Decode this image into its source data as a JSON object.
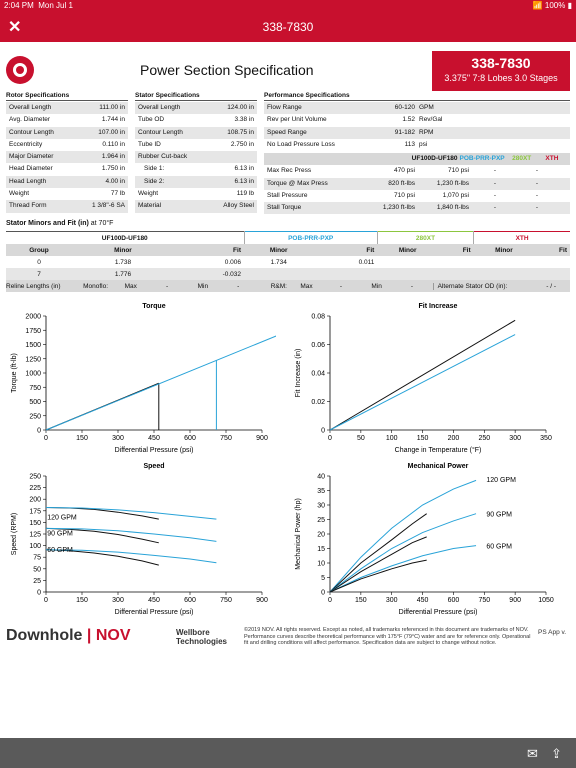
{
  "status": {
    "time": "2:04 PM",
    "date": "Mon Jul 1",
    "battery": "100%"
  },
  "nav": {
    "title": "338-7830"
  },
  "header": {
    "title": "Power Section Specification",
    "part_number": "338-7830",
    "subtitle": "3.375\" 7:8 Lobes 3.0 Stages"
  },
  "rotor": {
    "title": "Rotor Specifications",
    "rows": [
      {
        "label": "Overall Length",
        "value": "111.00 in"
      },
      {
        "label": "Avg. Diameter",
        "value": "1.744 in"
      },
      {
        "label": "Contour Length",
        "value": "107.00 in"
      },
      {
        "label": "Eccentricity",
        "value": "0.110 in"
      },
      {
        "label": "Major Diameter",
        "value": "1.964 in"
      },
      {
        "label": "Head Diameter",
        "value": "1.750 in"
      },
      {
        "label": "Head Length",
        "value": "4.00 in"
      },
      {
        "label": "Weight",
        "value": "77 lb"
      },
      {
        "label": "Thread Form",
        "value": "1 3/8\"-6 SA"
      }
    ]
  },
  "stator": {
    "title": "Stator Specifications",
    "rows": [
      {
        "label": "Overall Length",
        "value": "124.00 in"
      },
      {
        "label": "Tube OD",
        "value": "3.38 in"
      },
      {
        "label": "Contour Length",
        "value": "108.75 in"
      },
      {
        "label": "Tube ID",
        "value": "2.750 in"
      },
      {
        "label": "Rubber Cut-back",
        "value": ""
      },
      {
        "label": "Side 1:",
        "value": "6.13 in"
      },
      {
        "label": "Side 2:",
        "value": "6.13 in"
      },
      {
        "label": "Weight",
        "value": "119 lb"
      },
      {
        "label": "Material",
        "value": "Alloy Steel"
      }
    ]
  },
  "performance": {
    "title": "Performance Specifications",
    "rows": [
      {
        "label": "Flow Range",
        "value": "60-120",
        "unit": "GPM"
      },
      {
        "label": "Rev per Unit Volume",
        "value": "1.52",
        "unit": "Rev/Gal"
      },
      {
        "label": "Speed Range",
        "value": "91-182",
        "unit": "RPM"
      },
      {
        "label": "No Load Pressure Loss",
        "value": "113",
        "unit": "psi"
      }
    ],
    "col_headers": [
      "UF100D-UF180",
      "POB-PRR-PXP",
      "280XT",
      "XTH"
    ],
    "col_colors": [
      "#111111",
      "#29a3d8",
      "#8cc63f",
      "#c8102e"
    ],
    "rows2": [
      {
        "label": "Max Rec Press",
        "v1": "470 psi",
        "v2": "710 psi",
        "v3": "-",
        "v4": "-"
      },
      {
        "label": "Torque @ Max Press",
        "v1": "820 ft-lbs",
        "v2": "1,230 ft-lbs",
        "v3": "-",
        "v4": "-"
      },
      {
        "label": "Stall Pressure",
        "v1": "710 psi",
        "v2": "1,070 psi",
        "v3": "-",
        "v4": "-"
      },
      {
        "label": "Stall Torque",
        "v1": "1,230 ft-lbs",
        "v2": "1,840 ft-lbs",
        "v3": "-",
        "v4": "-"
      }
    ]
  },
  "fit": {
    "title_bold": "Stator Minors and Fit (in)",
    "title_rest": " at 70°F",
    "groups": [
      "UF100D-UF180",
      "POB-PRR-PXP",
      "280XT",
      "XTH"
    ],
    "sub": {
      "group": "Group",
      "minor": "Minor",
      "fit": "Fit"
    },
    "rows": [
      {
        "group": "0",
        "m1": "1.738",
        "f1": "0.006",
        "m2": "1.734",
        "f2": "0.011",
        "m3": "",
        "f3": "",
        "m4": "",
        "f4": ""
      },
      {
        "group": "7",
        "m1": "1.776",
        "f1": "-0.032",
        "m2": "",
        "f2": "",
        "m3": "",
        "f3": "",
        "m4": "",
        "f4": ""
      }
    ]
  },
  "reline": {
    "label": "Reline Lengths (in)",
    "monoflo": "Monoflo:",
    "max": "Max",
    "dash": "-",
    "min": "Min",
    "rm": "R&M:",
    "alt": "Alternate Stator OD (in):",
    "alt_val": "- / -"
  },
  "chart_data": [
    {
      "type": "line",
      "title": "Torque",
      "xlabel": "Differential Pressure (psi)",
      "ylabel": "Torque (ft-lb)",
      "xlim": [
        0,
        900
      ],
      "ylim": [
        0,
        2000
      ],
      "xticks": [
        0,
        150,
        300,
        450,
        600,
        750,
        900
      ],
      "yticks": [
        0,
        250,
        500,
        750,
        1000,
        1250,
        1500,
        1750,
        2000
      ],
      "series": [
        {
          "color": "#111111",
          "points": [
            [
              0,
              0
            ],
            [
              470,
              820
            ]
          ],
          "marker_x": 470
        },
        {
          "color": "#29a3d8",
          "points": [
            [
              0,
              0
            ],
            [
              1070,
              1840
            ]
          ],
          "marker_x": 710
        }
      ]
    },
    {
      "type": "line",
      "title": "Fit Increase",
      "xlabel": "Change in Temperature (°F)",
      "ylabel": "Fit Increase (in)",
      "xlim": [
        0,
        350
      ],
      "ylim": [
        0,
        0.08
      ],
      "xticks": [
        0,
        50,
        100,
        150,
        200,
        250,
        300,
        350
      ],
      "yticks": [
        0,
        0.02,
        0.04,
        0.06,
        0.08
      ],
      "series": [
        {
          "color": "#111111",
          "points": [
            [
              0,
              0
            ],
            [
              300,
              0.077
            ]
          ]
        },
        {
          "color": "#29a3d8",
          "points": [
            [
              0,
              0
            ],
            [
              300,
              0.067
            ]
          ]
        }
      ]
    },
    {
      "type": "line",
      "title": "Speed",
      "xlabel": "Differential Pressure (psi)",
      "ylabel": "Speed (RPM)",
      "xlim": [
        0,
        900
      ],
      "ylim": [
        0,
        250
      ],
      "xticks": [
        0,
        150,
        300,
        450,
        600,
        750,
        900
      ],
      "yticks": [
        0,
        25,
        50,
        75,
        100,
        125,
        150,
        175,
        200,
        225,
        250
      ],
      "annotations": [
        {
          "text": "120 GPM",
          "x": 5,
          "y": 156
        },
        {
          "text": "90 GPM",
          "x": 5,
          "y": 122
        },
        {
          "text": "60 GPM",
          "x": 5,
          "y": 86
        }
      ],
      "series": [
        {
          "color": "#111111",
          "points": [
            [
              0,
              182
            ],
            [
              100,
              181
            ],
            [
              200,
              178
            ],
            [
              300,
              172
            ],
            [
              400,
              164
            ],
            [
              470,
              157
            ]
          ]
        },
        {
          "color": "#29a3d8",
          "points": [
            [
              0,
              182
            ],
            [
              150,
              181
            ],
            [
              300,
              177
            ],
            [
              450,
              171
            ],
            [
              600,
              163
            ],
            [
              710,
              157
            ]
          ]
        },
        {
          "color": "#111111",
          "points": [
            [
              0,
              137
            ],
            [
              100,
              135
            ],
            [
              200,
              131
            ],
            [
              300,
              124
            ],
            [
              400,
              114
            ],
            [
              470,
              106
            ]
          ]
        },
        {
          "color": "#29a3d8",
          "points": [
            [
              0,
              137
            ],
            [
              150,
              136
            ],
            [
              300,
              132
            ],
            [
              450,
              125
            ],
            [
              600,
              117
            ],
            [
              710,
              109
            ]
          ]
        },
        {
          "color": "#111111",
          "points": [
            [
              0,
              91
            ],
            [
              100,
              89
            ],
            [
              200,
              84
            ],
            [
              300,
              77
            ],
            [
              400,
              67
            ],
            [
              470,
              58
            ]
          ]
        },
        {
          "color": "#29a3d8",
          "points": [
            [
              0,
              91
            ],
            [
              150,
              90
            ],
            [
              300,
              86
            ],
            [
              450,
              79
            ],
            [
              600,
              71
            ],
            [
              710,
              63
            ]
          ]
        }
      ]
    },
    {
      "type": "line",
      "title": "Mechanical Power",
      "xlabel": "Differential Pressure (psi)",
      "ylabel": "Mechanical Power (hp)",
      "xlim": [
        0,
        1050
      ],
      "ylim": [
        0,
        40
      ],
      "xticks": [
        0,
        150,
        300,
        450,
        600,
        750,
        900,
        1050
      ],
      "yticks": [
        0,
        5,
        10,
        15,
        20,
        25,
        30,
        35,
        40
      ],
      "annotations": [
        {
          "text": "120 GPM",
          "x": 760,
          "y": 38
        },
        {
          "text": "90 GPM",
          "x": 760,
          "y": 26
        },
        {
          "text": "60 GPM",
          "x": 760,
          "y": 15
        }
      ],
      "series": [
        {
          "color": "#29a3d8",
          "points": [
            [
              0,
              0
            ],
            [
              150,
              12
            ],
            [
              300,
              22
            ],
            [
              450,
              30
            ],
            [
              600,
              35.5
            ],
            [
              710,
              38.5
            ]
          ]
        },
        {
          "color": "#111111",
          "points": [
            [
              0,
              0
            ],
            [
              150,
              10
            ],
            [
              300,
              18
            ],
            [
              400,
              23.5
            ],
            [
              470,
              27
            ]
          ]
        },
        {
          "color": "#29a3d8",
          "points": [
            [
              0,
              0
            ],
            [
              150,
              8
            ],
            [
              300,
              15
            ],
            [
              450,
              20.5
            ],
            [
              600,
              24.5
            ],
            [
              710,
              27
            ]
          ]
        },
        {
          "color": "#111111",
          "points": [
            [
              0,
              0
            ],
            [
              150,
              7
            ],
            [
              300,
              13
            ],
            [
              400,
              17
            ],
            [
              470,
              19
            ]
          ]
        },
        {
          "color": "#29a3d8",
          "points": [
            [
              0,
              0
            ],
            [
              150,
              5
            ],
            [
              300,
              9
            ],
            [
              450,
              12.5
            ],
            [
              600,
              15
            ],
            [
              710,
              16
            ]
          ]
        },
        {
          "color": "#111111",
          "points": [
            [
              0,
              0
            ],
            [
              150,
              4.5
            ],
            [
              300,
              8
            ],
            [
              400,
              10
            ],
            [
              470,
              11
            ]
          ]
        }
      ]
    }
  ],
  "footer": {
    "brand1": "Downhole",
    "brand_sep": "|",
    "brand2": "NOV",
    "wt1": "Wellbore",
    "wt2": "Technologies",
    "legal": "©2019 NOV. All rights reserved. Except as noted, all trademarks referenced in this document are trademarks of NOV. Performance curves describe theoretical performance with 175°F (79°C) water and are for reference only. Operational fit and drilling conditions will affect performance. Specification data are subject to change without notice.",
    "app": "PS App v."
  }
}
